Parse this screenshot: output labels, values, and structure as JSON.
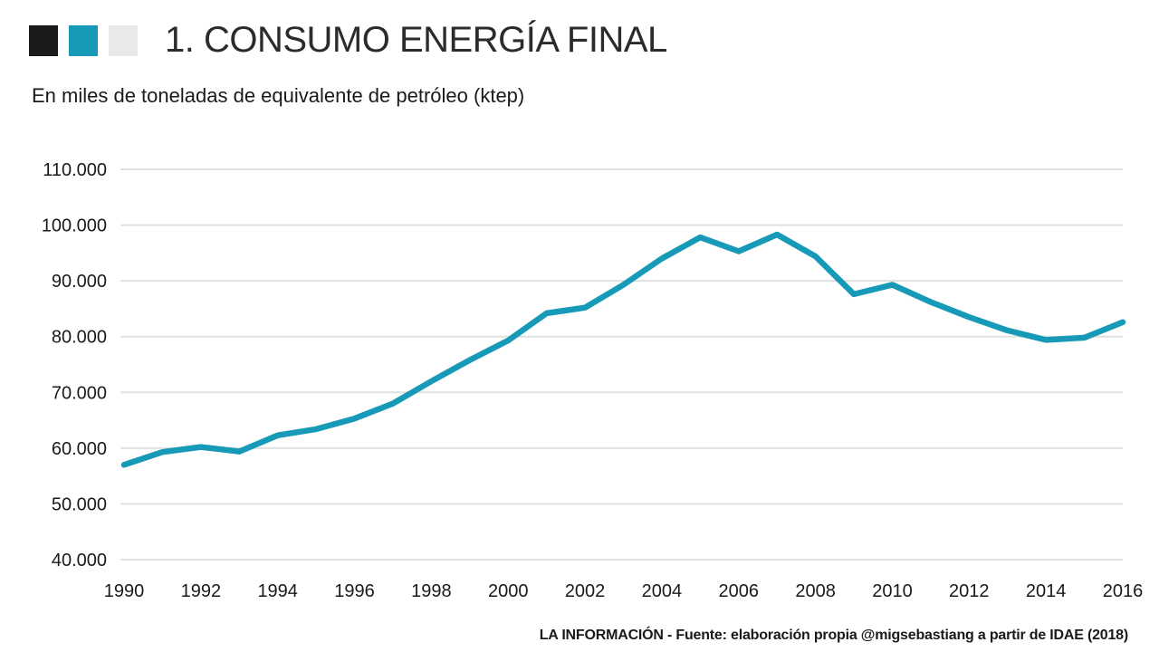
{
  "header": {
    "title": "1. CONSUMO ENERGÍA FINAL",
    "legend_squares": [
      {
        "name": "square-black",
        "color": "#1a1a1a"
      },
      {
        "name": "square-teal",
        "color": "#1799b8"
      },
      {
        "name": "square-gray",
        "color": "#e9e9e9"
      }
    ]
  },
  "subtitle": "En miles de toneladas de equivalente de petróleo (ktep)",
  "footer": {
    "credit": "LA INFORMACIÓN - Fuente: elaboración propia @migsebastiang a partir de IDAE (2018)"
  },
  "chart_data": {
    "type": "line",
    "title": "1. CONSUMO ENERGÍA FINAL",
    "subtitle": "En miles de toneladas de equivalente de petróleo (ktep)",
    "xlabel": "",
    "ylabel": "ktep",
    "grid": "horizontal-only",
    "legend_position": "none",
    "line_color": "#1799b8",
    "grid_color": "#e0e0e0",
    "axis_text_color": "#1a1a1a",
    "ylim": [
      40000,
      110000
    ],
    "x": [
      1990,
      1991,
      1992,
      1993,
      1994,
      1995,
      1996,
      1997,
      1998,
      1999,
      2000,
      2001,
      2002,
      2003,
      2004,
      2005,
      2006,
      2007,
      2008,
      2009,
      2010,
      2011,
      2012,
      2013,
      2014,
      2015,
      2016
    ],
    "series": [
      {
        "name": "Consumo de energía final (ktep)",
        "color": "#1799b8",
        "values": [
          57000,
          59300,
          60200,
          59400,
          62300,
          63400,
          65300,
          68000,
          72000,
          75800,
          79300,
          84200,
          85200,
          89300,
          94000,
          97800,
          95300,
          98300,
          94400,
          87600,
          89300,
          86200,
          83500,
          81100,
          79400,
          79800,
          82600
        ]
      }
    ],
    "yticks": [
      {
        "value": 110000,
        "label": "110.000"
      },
      {
        "value": 100000,
        "label": "100.000"
      },
      {
        "value": 90000,
        "label": "90.000"
      },
      {
        "value": 80000,
        "label": "80.000"
      },
      {
        "value": 70000,
        "label": "70.000"
      },
      {
        "value": 60000,
        "label": "60.000"
      },
      {
        "value": 50000,
        "label": "50.000"
      },
      {
        "value": 40000,
        "label": "40.000"
      }
    ],
    "xticks": [
      {
        "value": 1990,
        "label": "1990"
      },
      {
        "value": 1992,
        "label": "1992"
      },
      {
        "value": 1994,
        "label": "1994"
      },
      {
        "value": 1996,
        "label": "1996"
      },
      {
        "value": 1998,
        "label": "1998"
      },
      {
        "value": 2000,
        "label": "2000"
      },
      {
        "value": 2002,
        "label": "2002"
      },
      {
        "value": 2004,
        "label": "2004"
      },
      {
        "value": 2006,
        "label": "2006"
      },
      {
        "value": 2008,
        "label": "2008"
      },
      {
        "value": 2010,
        "label": "2010"
      },
      {
        "value": 2012,
        "label": "2012"
      },
      {
        "value": 2014,
        "label": "2014"
      },
      {
        "value": 2016,
        "label": "2016"
      }
    ]
  }
}
